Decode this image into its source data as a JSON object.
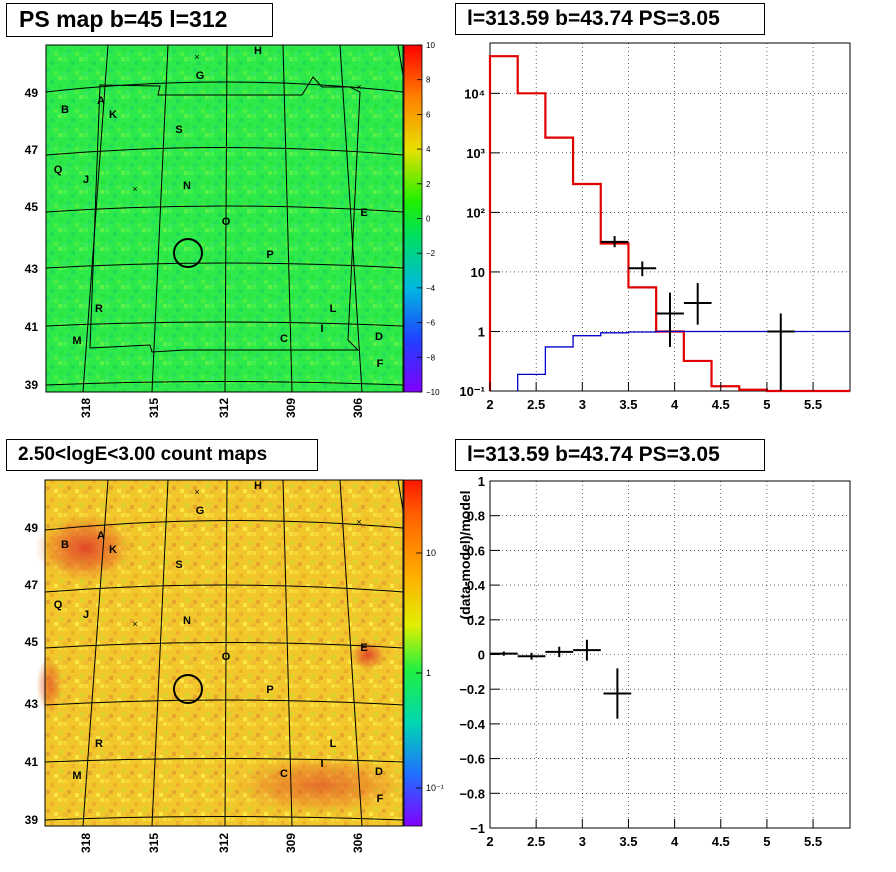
{
  "panels": {
    "ps_map": {
      "title": "PS map b=45 l=312",
      "lat_ticks": [
        "49",
        "47",
        "45",
        "43",
        "41",
        "39"
      ],
      "lon_ticks": [
        "318",
        "315",
        "312",
        "309",
        "306"
      ],
      "colorbar_ticks": [
        "10",
        "8",
        "6",
        "4",
        "2",
        "0",
        "−2",
        "−4",
        "−6",
        "−8",
        "−10"
      ]
    },
    "spectrum": {
      "title": "l=313.59 b=43.74 PS=3.05"
    },
    "count_map": {
      "title": "2.50<logE<3.00 count maps",
      "lat_ticks": [
        "49",
        "47",
        "45",
        "43",
        "41",
        "39"
      ],
      "lon_ticks": [
        "318",
        "315",
        "312",
        "309",
        "306"
      ],
      "colorbar_ticks": [
        "10",
        "1",
        "10⁻¹"
      ]
    },
    "residual": {
      "title": "l=313.59 b=43.74 PS=3.05",
      "ylabel": "(data-model)/model"
    }
  },
  "source_labels": [
    "H",
    "G",
    "B",
    "A",
    "K",
    "S",
    "Q",
    "J",
    "N",
    "E",
    "O",
    "P",
    "R",
    "L",
    "I",
    "M",
    "C",
    "D",
    "F"
  ],
  "colors": {
    "ps_map_bg": "#2fe84a",
    "count_map_bg": "#f2c52a",
    "model_line": "#e00000",
    "background_line": "#0000c8",
    "data": "#000000"
  },
  "chart_data": [
    {
      "type": "line",
      "subtitle": "spectrum",
      "log_y": true,
      "xlim": [
        2,
        5.9
      ],
      "ylim": [
        0.1,
        70000
      ],
      "x_ticks": [
        "2",
        "2.5",
        "3",
        "3.5",
        "4",
        "4.5",
        "5",
        "5.5"
      ],
      "y_ticks": [
        "10⁻¹",
        "1",
        "10",
        "10²",
        "10³",
        "10⁴"
      ],
      "series": [
        {
          "kind": "step",
          "color": "#e00000",
          "edges": [
            2,
            2.3,
            2.6,
            2.9,
            3.2,
            3.5,
            3.8,
            4.1,
            4.4,
            4.7,
            5.0,
            5.3,
            5.6,
            5.9
          ],
          "values": [
            42000,
            10000,
            1800,
            300,
            30,
            5.5,
            1.0,
            0.32,
            0.12,
            0.105,
            0.1,
            0.1,
            0.1
          ]
        },
        {
          "kind": "step",
          "color": "#0000c8",
          "edges": [
            2.3,
            2.6,
            2.9,
            3.2,
            3.5,
            3.8,
            4.1,
            4.4,
            4.7,
            5.0,
            5.3,
            5.6,
            5.9
          ],
          "values": [
            0.19,
            0.55,
            0.85,
            0.95,
            0.98,
            1.0,
            1.0,
            1.0,
            1.0,
            1.0,
            1.0,
            1.0
          ]
        },
        {
          "kind": "points",
          "color": "#000000",
          "points": [
            {
              "x": 3.35,
              "y": 32,
              "xerr": 0.15,
              "ylo": 26,
              "yhi": 40
            },
            {
              "x": 3.65,
              "y": 11.5,
              "xerr": 0.15,
              "ylo": 8.5,
              "yhi": 15
            },
            {
              "x": 3.95,
              "y": 2.0,
              "xerr": 0.15,
              "ylo": 0.55,
              "yhi": 4.5
            },
            {
              "x": 4.25,
              "y": 3.0,
              "xerr": 0.15,
              "ylo": 1.3,
              "yhi": 6.5
            },
            {
              "x": 5.15,
              "y": 1.0,
              "xerr": 0.15,
              "ylo": 0.1,
              "yhi": 2.0
            }
          ]
        }
      ]
    },
    {
      "type": "scatter",
      "subtitle": "residual",
      "xlim": [
        2,
        5.9
      ],
      "ylim": [
        -1,
        1
      ],
      "x_ticks": [
        "2",
        "2.5",
        "3",
        "3.5",
        "4",
        "4.5",
        "5",
        "5.5"
      ],
      "y_ticks": [
        "1",
        "0.8",
        "0.6",
        "0.4",
        "0.2",
        "0",
        "−0.2",
        "−0.4",
        "−0.6",
        "−0.8",
        "−1"
      ],
      "ylabel": "(data-model)/model",
      "points": [
        {
          "x": 2.15,
          "y": 0.005,
          "xerr": 0.15,
          "yerr": 0.012
        },
        {
          "x": 2.45,
          "y": -0.01,
          "xerr": 0.15,
          "yerr": 0.02
        },
        {
          "x": 2.75,
          "y": 0.015,
          "xerr": 0.15,
          "yerr": 0.03
        },
        {
          "x": 3.05,
          "y": 0.025,
          "xerr": 0.15,
          "yerr": 0.06
        },
        {
          "x": 3.38,
          "y": -0.225,
          "xerr": 0.15,
          "yerr": 0.145
        }
      ]
    }
  ]
}
